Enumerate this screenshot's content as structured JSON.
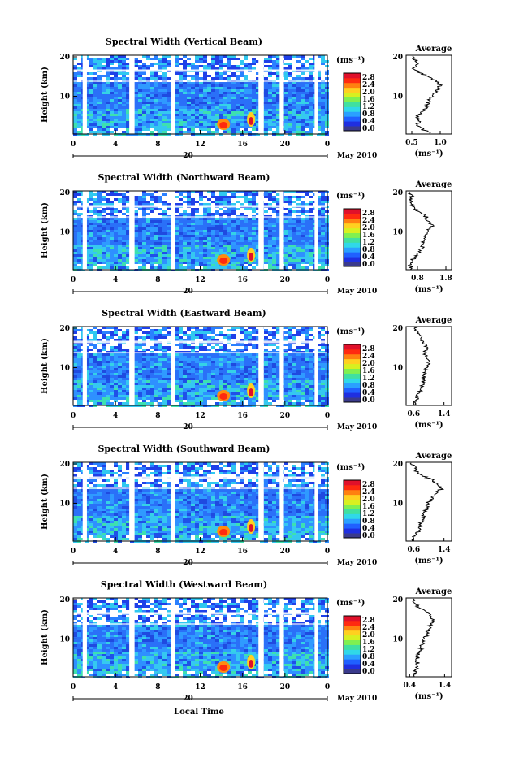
{
  "chart_data": {
    "type": "heatmap",
    "colorbar": {
      "unit_label": "(ms⁻¹)",
      "ticks": [
        "2.8",
        "2.4",
        "2.0",
        "1.6",
        "1.2",
        "0.8",
        "0.4",
        "0.0"
      ],
      "colors": [
        "#3a3a8c",
        "#1f2fe0",
        "#2060ff",
        "#2aa0ff",
        "#30d8e8",
        "#40e0a0",
        "#80f050",
        "#d8f020",
        "#ffd020",
        "#ff8010",
        "#ff2a10",
        "#e0102a"
      ]
    },
    "x_axis": {
      "ticks": [
        "0",
        "4",
        "8",
        "12",
        "16",
        "20",
        "0"
      ],
      "date_label": "20",
      "month_label": "May 2010",
      "xlabel": "Local Time"
    },
    "y_axis": {
      "ylabel": "Height (km)",
      "ticks": [
        "20",
        "10"
      ],
      "ylim": [
        2,
        20
      ]
    },
    "average_title": "Average",
    "average_xlabel": "(ms⁻¹)",
    "panels": [
      {
        "title": "Spectral Width (Vertical Beam)",
        "avg_ticks": [
          "0.5",
          "1.0"
        ],
        "avg_xlim": [
          0.4,
          1.2
        ],
        "avg_profile": {
          "heights": [
            2,
            3,
            4,
            5,
            6,
            7,
            8,
            9,
            10,
            11,
            12,
            13,
            14,
            15,
            16,
            17,
            18,
            19,
            20
          ],
          "values": [
            0.85,
            0.7,
            0.6,
            0.62,
            0.6,
            0.68,
            0.74,
            0.78,
            0.82,
            0.9,
            0.95,
            1.0,
            0.95,
            0.8,
            0.65,
            0.55,
            0.6,
            0.55,
            0.5
          ]
        }
      },
      {
        "title": "Spectral Width (Northward Beam)",
        "avg_ticks": [
          "0.8",
          "1.8"
        ],
        "avg_xlim": [
          0.4,
          2.0
        ],
        "avg_profile": {
          "heights": [
            2,
            3,
            4,
            5,
            6,
            7,
            8,
            9,
            10,
            11,
            12,
            13,
            14,
            15,
            16,
            17,
            18,
            19,
            20
          ],
          "values": [
            0.6,
            0.55,
            0.6,
            0.7,
            0.85,
            0.95,
            1.0,
            1.05,
            1.1,
            1.2,
            1.3,
            1.2,
            1.1,
            0.9,
            0.7,
            0.6,
            0.55,
            0.6,
            0.5
          ]
        }
      },
      {
        "title": "Spectral Width (Eastward Beam)",
        "avg_ticks": [
          "0.6",
          "1.4"
        ],
        "avg_xlim": [
          0.4,
          1.6
        ],
        "avg_profile": {
          "heights": [
            2,
            3,
            4,
            5,
            6,
            7,
            8,
            9,
            10,
            11,
            12,
            13,
            14,
            15,
            16,
            17,
            18,
            19,
            20
          ],
          "values": [
            0.6,
            0.65,
            0.7,
            0.75,
            0.8,
            0.85,
            0.85,
            0.88,
            0.9,
            0.95,
            1.0,
            0.95,
            0.9,
            0.95,
            0.88,
            0.8,
            0.75,
            0.7,
            0.65
          ]
        }
      },
      {
        "title": "Spectral Width (Southward Beam)",
        "avg_ticks": [
          "0.6",
          "1.4"
        ],
        "avg_xlim": [
          0.4,
          1.6
        ],
        "avg_profile": {
          "heights": [
            2,
            3,
            4,
            5,
            6,
            7,
            8,
            9,
            10,
            11,
            12,
            13,
            14,
            15,
            16,
            17,
            18,
            19,
            20
          ],
          "values": [
            0.55,
            0.6,
            0.7,
            0.75,
            0.8,
            0.82,
            0.85,
            0.9,
            0.95,
            1.0,
            1.1,
            1.2,
            1.35,
            1.2,
            1.1,
            0.8,
            0.65,
            0.6,
            0.55
          ]
        }
      },
      {
        "title": "Spectral Width (Westward Beam)",
        "avg_ticks": [
          "0.4",
          "1.4"
        ],
        "avg_xlim": [
          0.3,
          1.6
        ],
        "avg_profile": {
          "heights": [
            2,
            3,
            4,
            5,
            6,
            7,
            8,
            9,
            10,
            11,
            12,
            13,
            14,
            15,
            16,
            17,
            18,
            19,
            20
          ],
          "values": [
            0.5,
            0.55,
            0.6,
            0.62,
            0.62,
            0.65,
            0.7,
            0.75,
            0.8,
            0.85,
            0.9,
            0.95,
            1.0,
            1.05,
            1.0,
            0.85,
            0.65,
            0.55,
            0.5
          ]
        }
      }
    ]
  }
}
